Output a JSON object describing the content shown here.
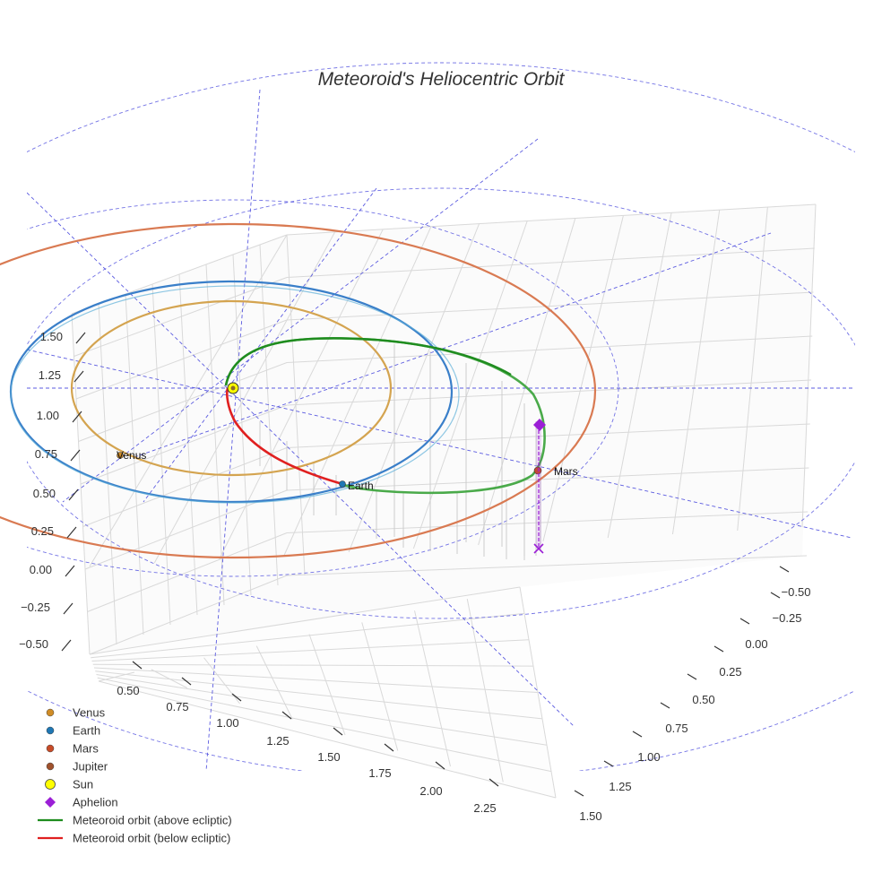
{
  "chart_data": {
    "type": "scatter",
    "title": "Meteoroid's Heliocentric Orbit",
    "projection": "3d",
    "grid": true,
    "legend_placement": "bottom-left",
    "axes": {
      "x": {
        "ticks": [
          "0.50",
          "0.75",
          "1.00",
          "1.25",
          "1.50",
          "1.75",
          "2.00",
          "2.25"
        ],
        "range": [
          0.4,
          2.4
        ]
      },
      "y": {
        "ticks": [
          "−0.50",
          "−0.25",
          "0.00",
          "0.25",
          "0.50",
          "0.75",
          "1.00",
          "1.25",
          "1.50"
        ],
        "range": [
          -0.6,
          1.55
        ]
      },
      "z": {
        "ticks": [
          "−0.50",
          "−0.25",
          "0.00",
          "0.25",
          "0.50",
          "0.75",
          "1.00",
          "1.25",
          "1.50"
        ],
        "range": [
          -0.6,
          1.6
        ]
      }
    },
    "bodies": [
      {
        "name": "Venus",
        "label": "Venus",
        "color": "#d08c26",
        "orbit_color": "#d4a450",
        "orbit_radius_au": 0.72
      },
      {
        "name": "Earth",
        "label": "Earth",
        "color": "#1f77b4",
        "orbit_color": "#3a7fc9",
        "orbit_radius_au": 1.0
      },
      {
        "name": "Mars",
        "label": "Mars",
        "color": "#c84c28",
        "orbit_color": "#d97a52",
        "orbit_radius_au": 1.52
      },
      {
        "name": "Jupiter",
        "label": "",
        "color": "#a0522d"
      },
      {
        "name": "Sun",
        "label": "",
        "color": "#ffff00"
      }
    ],
    "aphelion": {
      "name": "Aphelion",
      "color": "#9b1fd6"
    },
    "series": [
      {
        "name": "Meteoroid orbit (above ecliptic)",
        "color": "#1f8c1f"
      },
      {
        "name": "Meteoroid orbit (below ecliptic)",
        "color": "#e02020"
      }
    ],
    "reference_lines_color": "#5b5be0",
    "legend": [
      {
        "label": "Venus",
        "marker": "circle",
        "color": "#d08c26"
      },
      {
        "label": "Earth",
        "marker": "circle",
        "color": "#1f77b4"
      },
      {
        "label": "Mars",
        "marker": "circle",
        "color": "#c84c28"
      },
      {
        "label": "Jupiter",
        "marker": "circle",
        "color": "#a0522d"
      },
      {
        "label": "Sun",
        "marker": "circle-large",
        "color": "#ffff00"
      },
      {
        "label": "Aphelion",
        "marker": "diamond",
        "color": "#9b1fd6"
      },
      {
        "label": "Meteoroid orbit (above ecliptic)",
        "marker": "line",
        "color": "#1f8c1f"
      },
      {
        "label": "Meteoroid orbit (below ecliptic)",
        "marker": "line",
        "color": "#e02020"
      }
    ]
  }
}
